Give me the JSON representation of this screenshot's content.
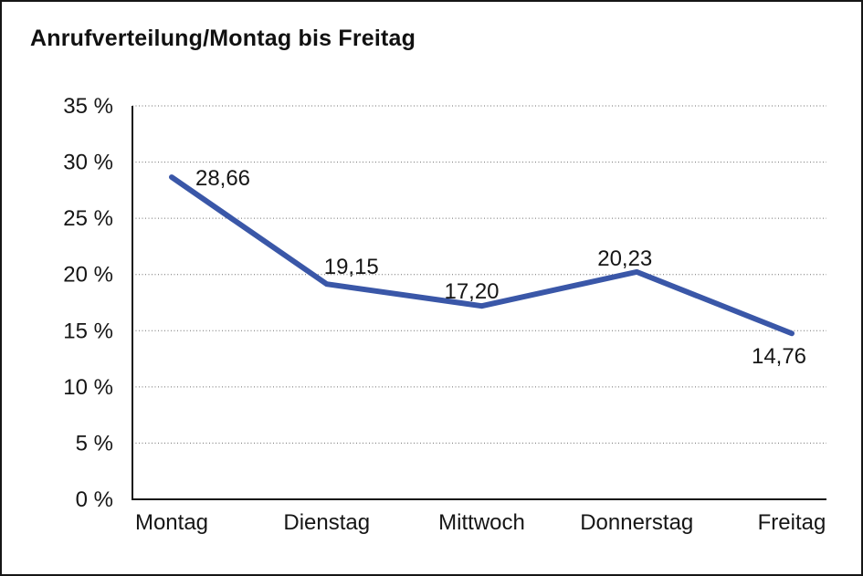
{
  "chart_data": {
    "type": "line",
    "title": "Anrufverteilung/Montag bis Freitag",
    "categories": [
      "Montag",
      "Dienstag",
      "Mittwoch",
      "Donnerstag",
      "Freitag"
    ],
    "values": [
      28.66,
      19.15,
      17.2,
      20.23,
      14.76
    ],
    "value_labels": [
      "28,66",
      "19,15",
      "17,20",
      "20,23",
      "14,76"
    ],
    "series_name": "Anrufverteilung",
    "xlabel": "",
    "ylabel": "",
    "ylim": [
      0,
      35
    ],
    "y_tick_values": [
      35,
      30,
      25,
      20,
      15,
      10,
      5,
      0
    ],
    "y_tick_labels": [
      "35 %",
      "30 %",
      "25 %",
      "20 %",
      "15 %",
      "10 %",
      "5 %",
      "0 %"
    ],
    "grid": "horizontal-dotted",
    "legend": "none",
    "colors": {
      "line": "#3A57A8",
      "text": "#161616",
      "grid": "#6e6e6e",
      "background": "#ffffff",
      "frame_border": "#161616"
    }
  }
}
